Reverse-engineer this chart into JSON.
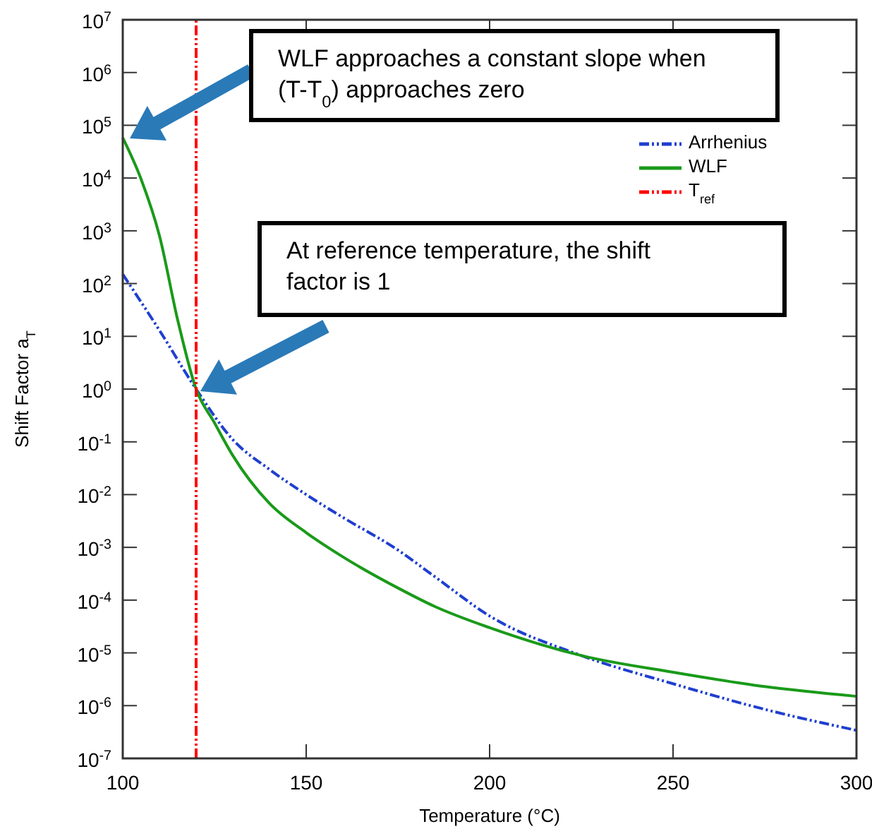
{
  "chart_data": {
    "type": "line",
    "xlabel": "Temperature (°C)",
    "ylabel": "Shift Factor a$_{T}$",
    "log": "y",
    "xlim": [
      100,
      300
    ],
    "xticks": [
      100,
      150,
      200,
      250,
      300
    ],
    "ylim": [
      1e-07,
      10000000.0
    ],
    "yticks": [
      {
        "value": 1e-07,
        "label": "10$^{-7}$"
      },
      {
        "value": 1e-06,
        "label": "10$^{-6}$"
      },
      {
        "value": 1e-05,
        "label": "10$^{-5}$"
      },
      {
        "value": 0.0001,
        "label": "10$^{-4}$"
      },
      {
        "value": 0.001,
        "label": "10$^{-3}$"
      },
      {
        "value": 0.01,
        "label": "10$^{-2}$"
      },
      {
        "value": 0.1,
        "label": "10$^{-1}$"
      },
      {
        "value": 1,
        "label": "10$^{0}$"
      },
      {
        "value": 10,
        "label": "10$^{1}$"
      },
      {
        "value": 100,
        "label": "10$^{2}$"
      },
      {
        "value": 1000,
        "label": "10$^{3}$"
      },
      {
        "value": 10000.0,
        "label": "10$^{4}$"
      },
      {
        "value": 100000.0,
        "label": "10$^{5}$"
      },
      {
        "value": 1000000.0,
        "label": "10$^{6}$"
      },
      {
        "value": 10000000.0,
        "label": "10$^{7}$"
      }
    ],
    "grid": false,
    "legend": "top right",
    "marker": "none",
    "series": [
      {
        "name": "Arrhenius",
        "color": "#1f3fd0",
        "line_style": "dashed",
        "x": [
          100,
          110,
          120,
          130,
          140,
          150,
          160,
          175,
          185,
          200,
          225,
          250,
          275,
          300
        ],
        "values": [
          150,
          13,
          1,
          0.11,
          0.03,
          0.01,
          0.0037,
          0.00089,
          0.00028,
          5e-05,
          8.9e-06,
          2.6e-06,
          8.5e-07,
          3.4e-07
        ]
      },
      {
        "name": "WLF",
        "color": "#1a9a1a",
        "line_style": "solid",
        "x": [
          100,
          105,
          110,
          115,
          120,
          125,
          130,
          140,
          150,
          160,
          175,
          185,
          200,
          225,
          250,
          275,
          300
        ],
        "values": [
          58000,
          9500,
          810,
          20,
          1,
          0.23,
          0.055,
          0.0068,
          0.0019,
          0.00066,
          0.00017,
          7.6e-05,
          3e-05,
          8.9e-06,
          4.3e-06,
          2.3e-06,
          1.5e-06
        ]
      },
      {
        "name": "T$_{ref}$",
        "color": "#ff0000",
        "line_style": "dashed",
        "x": [
          120,
          120
        ],
        "values": [
          1e-07,
          10000000.0
        ]
      }
    ],
    "annotations": [
      "WLF approaches a constant slope when (T-T$_{0}$) approaches zero",
      "At reference temperature, the shift factor is 1"
    ]
  }
}
